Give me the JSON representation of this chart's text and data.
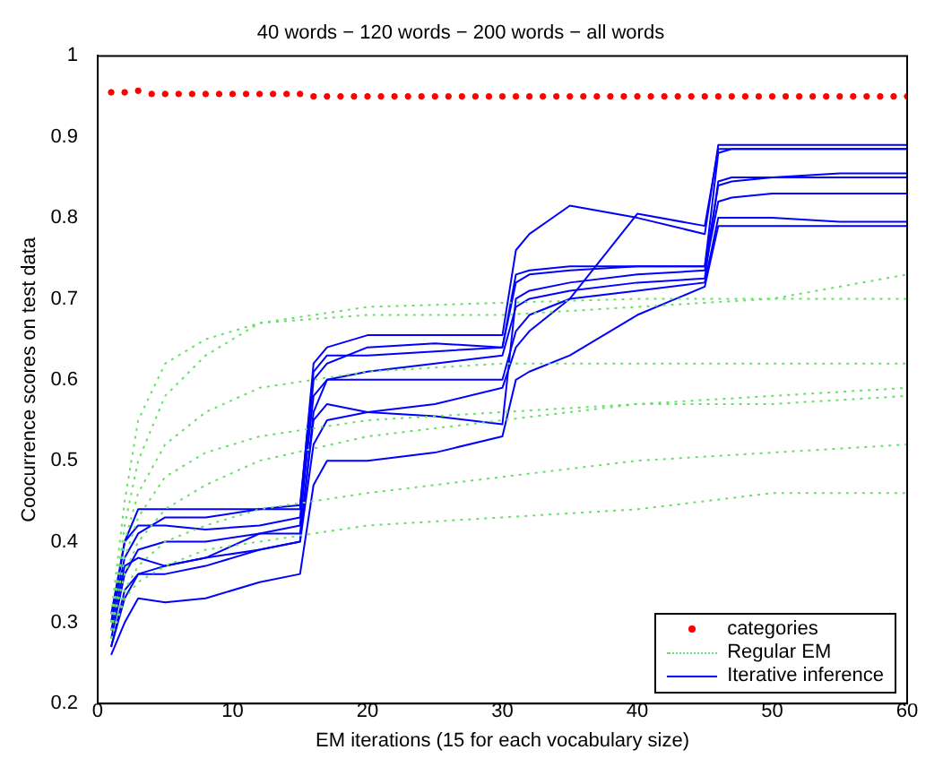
{
  "chart_data": {
    "type": "line",
    "title": "40 words − 120 words − 200 words − all words",
    "xlabel": "EM iterations (15 for each vocabulary size)",
    "ylabel": "Coocurrence scores on test data",
    "xlim": [
      0,
      60
    ],
    "xticks": [
      0,
      10,
      20,
      30,
      40,
      50,
      60
    ],
    "ylim": [
      0.2,
      1
    ],
    "yticks": [
      0.2,
      0.3,
      0.4,
      0.5,
      0.6,
      0.7,
      0.8,
      0.9,
      1
    ],
    "grid": false,
    "legend": "bottom right",
    "series": [
      {
        "name": "categories",
        "type": "scatter",
        "marker": "circle",
        "color": "#ff0000",
        "x": [
          1,
          2,
          3,
          4,
          5,
          6,
          7,
          8,
          9,
          10,
          11,
          12,
          13,
          14,
          15,
          16,
          17,
          18,
          19,
          20,
          21,
          22,
          23,
          24,
          25,
          26,
          27,
          28,
          29,
          30,
          31,
          32,
          33,
          34,
          35,
          36,
          37,
          38,
          39,
          40,
          41,
          42,
          43,
          44,
          45,
          46,
          47,
          48,
          49,
          50,
          51,
          52,
          53,
          54,
          55,
          56,
          57,
          58,
          59,
          60
        ],
        "values": [
          0.955,
          0.955,
          0.957,
          0.953,
          0.953,
          0.953,
          0.953,
          0.953,
          0.953,
          0.953,
          0.953,
          0.953,
          0.953,
          0.953,
          0.953,
          0.95,
          0.95,
          0.95,
          0.95,
          0.95,
          0.95,
          0.95,
          0.95,
          0.95,
          0.95,
          0.95,
          0.95,
          0.95,
          0.95,
          0.95,
          0.95,
          0.95,
          0.95,
          0.95,
          0.95,
          0.95,
          0.95,
          0.95,
          0.95,
          0.95,
          0.95,
          0.95,
          0.95,
          0.95,
          0.95,
          0.95,
          0.95,
          0.95,
          0.95,
          0.95,
          0.95,
          0.95,
          0.95,
          0.95,
          0.95,
          0.95,
          0.95,
          0.95,
          0.95,
          0.95
        ]
      },
      {
        "name": "Regular EM",
        "type": "line",
        "line_style": "dotted",
        "marker": "none",
        "color": "#66e066",
        "x": [
          1,
          2,
          3,
          5,
          8,
          12,
          20,
          30,
          40,
          50,
          60
        ],
        "values": [
          0.3,
          0.42,
          0.5,
          0.58,
          0.63,
          0.67,
          0.69,
          0.695,
          0.7,
          0.7,
          0.7
        ]
      },
      {
        "type": "line",
        "line_style": "dotted",
        "marker": "none",
        "color": "#66e066",
        "x": [
          1,
          2,
          3,
          5,
          8,
          12,
          20,
          30,
          40,
          50,
          60
        ],
        "values": [
          0.3,
          0.4,
          0.46,
          0.52,
          0.56,
          0.59,
          0.61,
          0.62,
          0.62,
          0.62,
          0.62
        ]
      },
      {
        "type": "line",
        "line_style": "dotted",
        "marker": "none",
        "color": "#66e066",
        "x": [
          1,
          2,
          3,
          5,
          8,
          12,
          20,
          30,
          40,
          50,
          60
        ],
        "values": [
          0.29,
          0.36,
          0.4,
          0.44,
          0.47,
          0.5,
          0.53,
          0.55,
          0.57,
          0.58,
          0.59
        ]
      },
      {
        "type": "line",
        "line_style": "dotted",
        "marker": "none",
        "color": "#66e066",
        "x": [
          1,
          2,
          3,
          5,
          8,
          12,
          20,
          30,
          40,
          50,
          60
        ],
        "values": [
          0.28,
          0.34,
          0.37,
          0.4,
          0.42,
          0.44,
          0.46,
          0.48,
          0.5,
          0.51,
          0.52
        ]
      },
      {
        "type": "line",
        "line_style": "dotted",
        "marker": "none",
        "color": "#66e066",
        "x": [
          1,
          2,
          3,
          5,
          8,
          12,
          20,
          30,
          40,
          50,
          60
        ],
        "values": [
          0.28,
          0.33,
          0.35,
          0.37,
          0.39,
          0.4,
          0.42,
          0.43,
          0.44,
          0.46,
          0.46
        ]
      },
      {
        "type": "line",
        "line_style": "dotted",
        "marker": "none",
        "color": "#66e066",
        "x": [
          1,
          2,
          3,
          5,
          8,
          12,
          20,
          30,
          40,
          50,
          60
        ],
        "values": [
          0.31,
          0.45,
          0.55,
          0.62,
          0.65,
          0.67,
          0.68,
          0.68,
          0.69,
          0.7,
          0.73
        ]
      },
      {
        "type": "line",
        "line_style": "dotted",
        "marker": "none",
        "color": "#66e066",
        "x": [
          1,
          2,
          3,
          5,
          8,
          12,
          20,
          30,
          40,
          50,
          60
        ],
        "values": [
          0.29,
          0.38,
          0.43,
          0.48,
          0.51,
          0.53,
          0.55,
          0.56,
          0.57,
          0.57,
          0.58
        ]
      },
      {
        "name": "Iterative inference",
        "type": "line",
        "line_style": "solid",
        "marker": "none",
        "color": "#0000ff",
        "x": [
          1,
          2,
          3,
          5,
          8,
          12,
          15,
          16,
          17,
          20,
          25,
          30,
          31,
          32,
          35,
          40,
          45,
          46,
          47,
          50,
          55,
          60
        ],
        "values": [
          0.3,
          0.38,
          0.41,
          0.43,
          0.43,
          0.44,
          0.44,
          0.62,
          0.64,
          0.655,
          0.655,
          0.655,
          0.76,
          0.78,
          0.815,
          0.8,
          0.78,
          0.89,
          0.89,
          0.89,
          0.89,
          0.89
        ]
      },
      {
        "type": "line",
        "line_style": "solid",
        "marker": "none",
        "color": "#0000ff",
        "x": [
          1,
          2,
          3,
          5,
          8,
          12,
          15,
          16,
          17,
          20,
          25,
          30,
          31,
          32,
          35,
          40,
          45,
          46,
          47,
          50,
          55,
          60
        ],
        "values": [
          0.27,
          0.33,
          0.36,
          0.37,
          0.38,
          0.41,
          0.42,
          0.6,
          0.62,
          0.64,
          0.645,
          0.64,
          0.72,
          0.73,
          0.735,
          0.74,
          0.74,
          0.84,
          0.845,
          0.85,
          0.85,
          0.85
        ]
      },
      {
        "type": "line",
        "line_style": "solid",
        "marker": "none",
        "color": "#0000ff",
        "x": [
          1,
          2,
          3,
          5,
          8,
          12,
          15,
          16,
          17,
          20,
          25,
          30,
          31,
          32,
          35,
          40,
          45,
          46,
          47,
          50,
          55,
          60
        ],
        "values": [
          0.26,
          0.3,
          0.33,
          0.325,
          0.33,
          0.35,
          0.36,
          0.47,
          0.5,
          0.5,
          0.51,
          0.53,
          0.6,
          0.61,
          0.63,
          0.68,
          0.715,
          0.79,
          0.79,
          0.79,
          0.79,
          0.79
        ]
      },
      {
        "type": "line",
        "line_style": "solid",
        "marker": "none",
        "color": "#0000ff",
        "x": [
          1,
          2,
          3,
          5,
          8,
          12,
          15,
          16,
          17,
          20,
          25,
          30,
          31,
          32,
          35,
          40,
          45,
          46,
          47,
          50,
          55,
          60
        ],
        "values": [
          0.28,
          0.36,
          0.39,
          0.4,
          0.4,
          0.41,
          0.41,
          0.55,
          0.57,
          0.56,
          0.555,
          0.545,
          0.7,
          0.71,
          0.72,
          0.73,
          0.735,
          0.82,
          0.825,
          0.83,
          0.83,
          0.83
        ]
      },
      {
        "type": "line",
        "line_style": "solid",
        "marker": "none",
        "color": "#0000ff",
        "x": [
          1,
          2,
          3,
          5,
          8,
          12,
          15,
          16,
          17,
          20,
          25,
          30,
          31,
          32,
          35,
          40,
          45,
          46,
          47,
          50,
          55,
          60
        ],
        "values": [
          0.3,
          0.4,
          0.42,
          0.42,
          0.415,
          0.42,
          0.43,
          0.58,
          0.6,
          0.61,
          0.62,
          0.63,
          0.69,
          0.7,
          0.71,
          0.72,
          0.725,
          0.845,
          0.85,
          0.85,
          0.855,
          0.855
        ]
      },
      {
        "type": "line",
        "line_style": "solid",
        "marker": "none",
        "color": "#0000ff",
        "x": [
          1,
          2,
          3,
          5,
          8,
          12,
          15,
          16,
          17,
          20,
          25,
          30,
          31,
          32,
          35,
          40,
          45,
          46,
          47,
          50,
          55,
          60
        ],
        "values": [
          0.29,
          0.37,
          0.38,
          0.37,
          0.38,
          0.39,
          0.4,
          0.52,
          0.55,
          0.56,
          0.57,
          0.59,
          0.64,
          0.66,
          0.7,
          0.805,
          0.79,
          0.885,
          0.885,
          0.885,
          0.885,
          0.885
        ]
      },
      {
        "type": "line",
        "line_style": "solid",
        "marker": "none",
        "color": "#0000ff",
        "x": [
          1,
          2,
          3,
          5,
          8,
          12,
          15,
          16,
          17,
          20,
          25,
          30,
          31,
          32,
          35,
          40,
          45,
          46,
          47,
          50,
          55,
          60
        ],
        "values": [
          0.27,
          0.34,
          0.36,
          0.36,
          0.37,
          0.39,
          0.4,
          0.56,
          0.6,
          0.6,
          0.6,
          0.6,
          0.66,
          0.68,
          0.7,
          0.71,
          0.72,
          0.8,
          0.8,
          0.8,
          0.795,
          0.795
        ]
      },
      {
        "type": "line",
        "line_style": "solid",
        "marker": "none",
        "color": "#0000ff",
        "x": [
          1,
          2,
          3,
          5,
          8,
          12,
          15,
          16,
          17,
          20,
          25,
          30,
          31,
          32,
          35,
          40,
          45,
          46,
          47,
          50,
          55,
          60
        ],
        "values": [
          0.31,
          0.4,
          0.44,
          0.44,
          0.44,
          0.44,
          0.445,
          0.61,
          0.63,
          0.63,
          0.635,
          0.64,
          0.73,
          0.735,
          0.74,
          0.74,
          0.74,
          0.88,
          0.885,
          0.885,
          0.885,
          0.885
        ]
      }
    ]
  }
}
